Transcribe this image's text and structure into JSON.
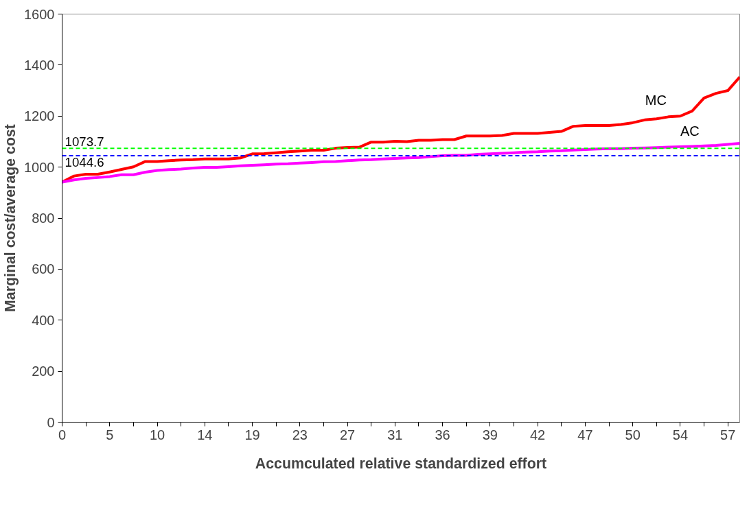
{
  "chart_data": {
    "type": "line",
    "xlabel": "Accumculated relative standardized effort",
    "ylabel": "Marginal cost/average cost",
    "categories": [
      "0",
      null,
      null,
      null,
      "5",
      null,
      null,
      null,
      "10",
      null,
      null,
      null,
      "14",
      null,
      null,
      null,
      "19",
      null,
      null,
      null,
      "23",
      null,
      null,
      null,
      "27",
      null,
      null,
      null,
      "31",
      null,
      null,
      null,
      "36",
      null,
      null,
      null,
      "39",
      null,
      null,
      null,
      "42",
      null,
      null,
      null,
      "47",
      null,
      null,
      null,
      "50",
      null,
      null,
      null,
      "54",
      null,
      null,
      null,
      "57",
      null
    ],
    "series": [
      {
        "name": "MC",
        "color": "#ff0000",
        "values": [
          941,
          965,
          972,
          972,
          981,
          991,
          1001,
          1022,
          1022,
          1025,
          1028,
          1029,
          1032,
          1032,
          1032,
          1036,
          1052,
          1053,
          1056,
          1060,
          1063,
          1066,
          1066,
          1074,
          1077,
          1078,
          1098,
          1098,
          1101,
          1100,
          1105,
          1105,
          1108,
          1108,
          1122,
          1122,
          1122,
          1124,
          1132,
          1132,
          1132,
          1136,
          1140,
          1160,
          1163,
          1163,
          1163,
          1167,
          1174,
          1185,
          1189,
          1197,
          1200,
          1220,
          1271,
          1289,
          1300,
          1353
        ]
      },
      {
        "name": "AC",
        "color": "#ff00ff",
        "values": [
          941,
          950,
          956,
          959,
          963,
          970,
          970,
          980,
          987,
          990,
          992,
          996,
          999,
          999,
          1002,
          1005,
          1007,
          1009,
          1012,
          1013,
          1016,
          1018,
          1021,
          1022,
          1025,
          1028,
          1029,
          1032,
          1034,
          1036,
          1037,
          1041,
          1045,
          1046,
          1046,
          1050,
          1052,
          1054,
          1056,
          1059,
          1060,
          1063,
          1064,
          1067,
          1069,
          1071,
          1072,
          1072,
          1074,
          1075,
          1076,
          1078,
          1080,
          1081,
          1083,
          1085,
          1089,
          1093
        ]
      }
    ],
    "ref_lines": [
      {
        "axis": "y",
        "value": 1073.7,
        "label": "1073.7",
        "color": "#00ff00",
        "line_style": "dashed"
      },
      {
        "axis": "y",
        "value": 1044.6,
        "label": "1044.6",
        "color": "#0000ff",
        "line_style": "dashed"
      }
    ],
    "ylim": [
      0,
      1600
    ],
    "yticks": [
      0,
      200,
      400,
      600,
      800,
      1000,
      1200,
      1400,
      1600
    ],
    "grid": false,
    "legend": false,
    "line_style": "solid",
    "marker": "none"
  }
}
